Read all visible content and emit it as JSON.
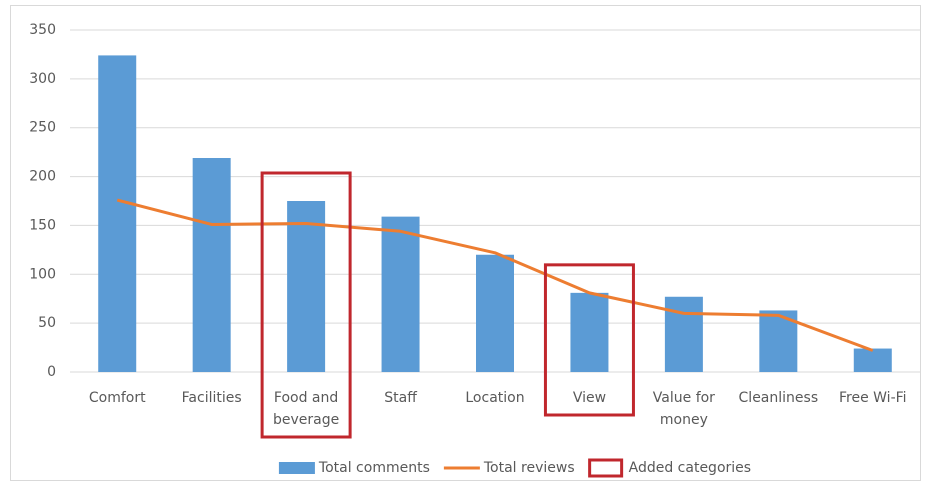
{
  "chart_data": {
    "type": "bar+line",
    "categories": [
      "Comfort",
      "Facilities",
      "Food and beverage",
      "Staff",
      "Location",
      "View",
      "Value for money",
      "Cleanliness",
      "Free Wi-Fi"
    ],
    "series": [
      {
        "name": "Total comments",
        "type": "bar",
        "color": "#5b9bd5",
        "values": [
          324,
          219,
          175,
          159,
          120,
          81,
          77,
          63,
          24
        ]
      },
      {
        "name": "Total reviews",
        "type": "line",
        "color": "#ed7d31",
        "values": [
          176,
          151,
          152,
          144,
          122,
          81,
          60,
          58,
          22
        ]
      }
    ],
    "highlight": {
      "name": "Added categories",
      "color": "#c0272d",
      "categories": [
        "Food and beverage",
        "View"
      ]
    },
    "ylim": [
      0,
      350
    ],
    "yticks": [
      0,
      50,
      100,
      150,
      200,
      250,
      300,
      350
    ],
    "grid": true,
    "legend": "bottom"
  }
}
